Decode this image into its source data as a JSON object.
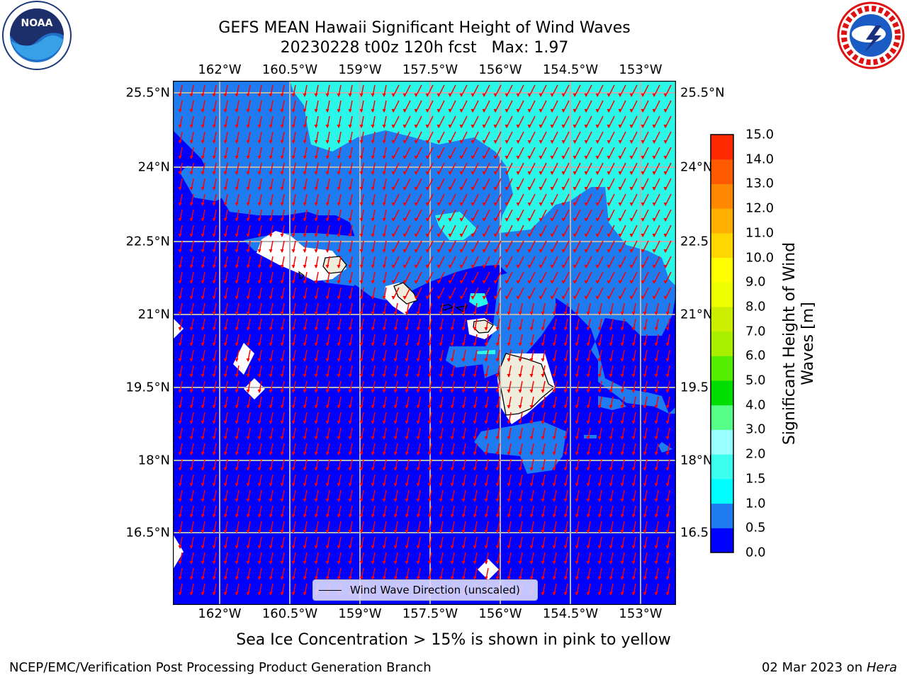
{
  "header": {
    "title_line1": "GEFS MEAN Hawaii Significant Height of Wind Waves",
    "title_line2": "20230228 t00z 120h fcst   Max: 1.97"
  },
  "map": {
    "lon_ticks": [
      "162°W",
      "160.5°W",
      "159°W",
      "157.5°W",
      "156°W",
      "154.5°W",
      "153°W"
    ],
    "lat_ticks": [
      "25.5°N",
      "24°N",
      "22.5°N",
      "21°N",
      "19.5°N",
      "18°N",
      "16.5°N"
    ],
    "right_lat_ticks": [
      "25.5°N",
      "24°N",
      "22.5",
      "21°N",
      "19.5",
      "18°N",
      "16.5"
    ],
    "legend_label": "Wind Wave Direction (unscaled)",
    "colors": {
      "ocean_low": "#0000ff",
      "ocean_mid": "#1e7bf0",
      "ocean_high": "#2bf7e8",
      "land": "#efeedc",
      "arrow": "#ff0000",
      "grid": "#b4b4b4"
    }
  },
  "colorbar": {
    "label": "Significant Height of Wind Waves [m]",
    "ticks": [
      "15.0",
      "14.0",
      "13.0",
      "12.0",
      "11.0",
      "10.0",
      "9.0",
      "8.0",
      "7.0",
      "6.0",
      "5.0",
      "4.0",
      "3.0",
      "2.0",
      "1.5",
      "1.0",
      "0.5",
      "0.0"
    ],
    "colors": [
      "#0000ff",
      "#1e7bf0",
      "#00ffff",
      "#3cffee",
      "#99ffff",
      "#55ff88",
      "#00dd00",
      "#55ee00",
      "#aaee00",
      "#ccee00",
      "#eeff00",
      "#ffff00",
      "#ffd700",
      "#ffb000",
      "#ff8800",
      "#ff5a00",
      "#ff2a00"
    ]
  },
  "footer": {
    "note": "Sea Ice Concentration > 15% is shown in pink to yellow",
    "left": "NCEP/EMC/Verification Post Processing Product Generation Branch",
    "right_date": "02 Mar 2023 on ",
    "right_host": "Hera"
  },
  "logos": {
    "left": "NOAA",
    "right": "NATIONAL WEATHER SERVICE"
  }
}
